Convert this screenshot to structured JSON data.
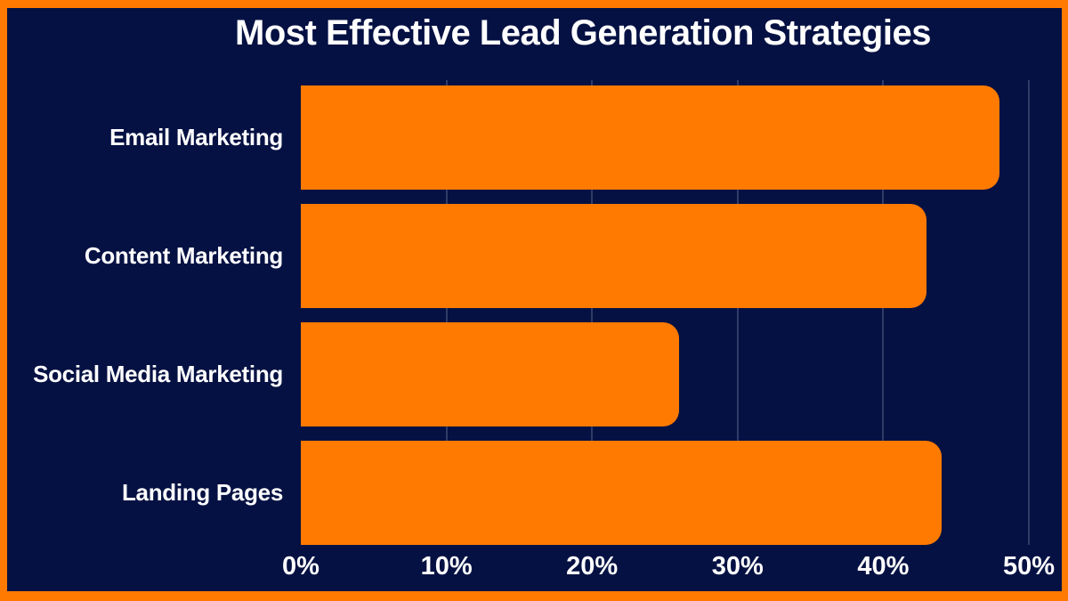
{
  "colors": {
    "background": "#051143",
    "bar": "#ff7a00",
    "frame": "#ff7a00",
    "text": "#ffffff",
    "gridline": "rgba(195,203,224,0.45)"
  },
  "chart_data": {
    "type": "bar",
    "orientation": "horizontal",
    "title": "Most Effective Lead Generation Strategies",
    "categories": [
      "Email Marketing",
      "Content Marketing",
      "Social Media Marketing",
      "Landing Pages"
    ],
    "values": [
      48,
      43,
      26,
      44
    ],
    "unit": "%",
    "xlabel": "",
    "ylabel": "",
    "xlim": [
      0,
      50
    ],
    "x_ticks": [
      0,
      10,
      20,
      30,
      40,
      50
    ],
    "x_tick_labels": [
      "0%",
      "10%",
      "20%",
      "30%",
      "40%",
      "50%"
    ],
    "grid": true,
    "legend": false,
    "bar_corner": "rounded-right"
  }
}
